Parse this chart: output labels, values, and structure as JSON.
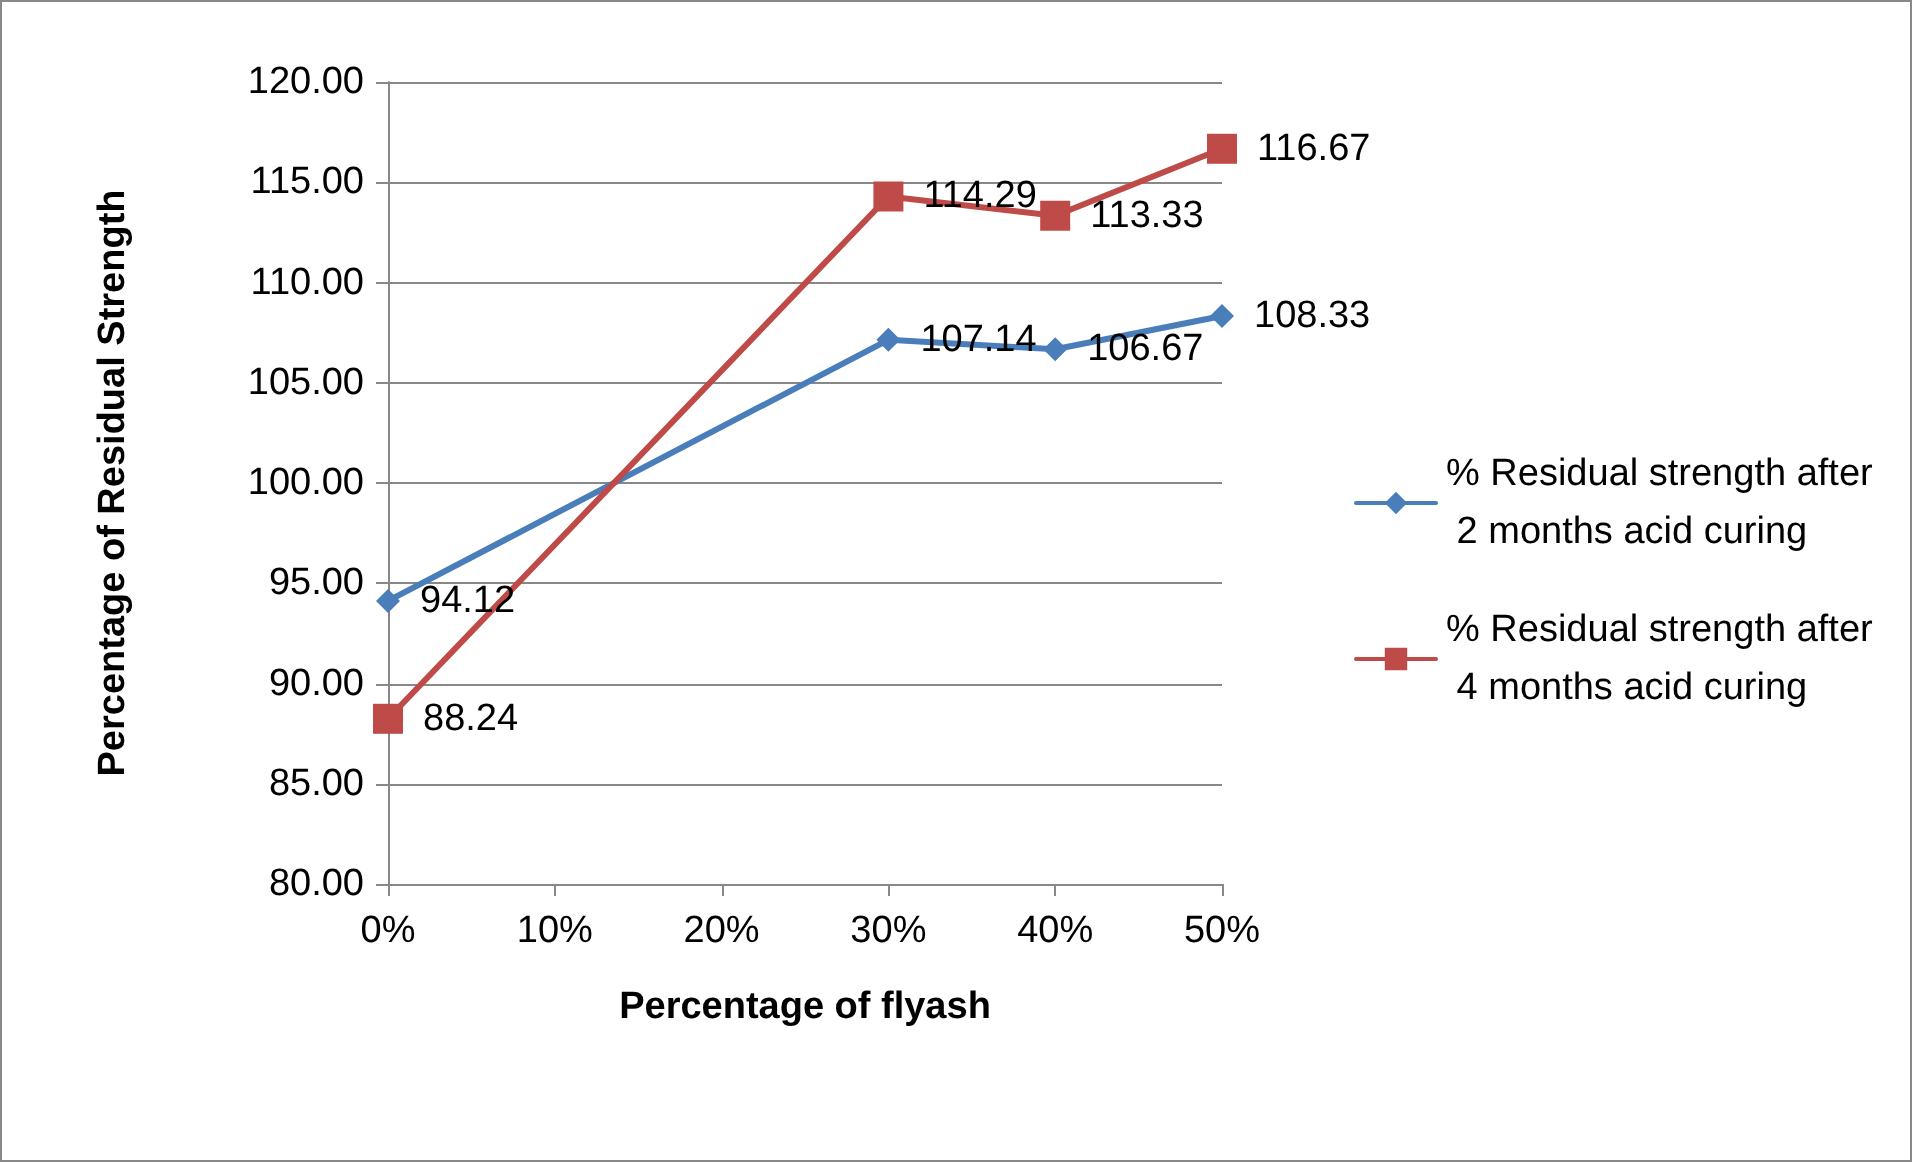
{
  "chart_data": {
    "type": "line",
    "xlabel": "Percentage of flyash",
    "ylabel": "Percentage of Residual Strength",
    "x": [
      0,
      30,
      40,
      50
    ],
    "series": [
      {
        "name": "% Residual strength after 2 months acid curing",
        "color": "#4a7ebb",
        "marker": "diamond",
        "values": [
          94.12,
          107.14,
          106.67,
          108.33
        ]
      },
      {
        "name": "% Residual strength after 4 months acid curing",
        "color": "#be4b48",
        "marker": "square",
        "values": [
          88.24,
          114.29,
          113.33,
          116.67
        ]
      }
    ],
    "xlim": [
      0,
      50
    ],
    "xticks": [
      {
        "value": 0,
        "label": "0%"
      },
      {
        "value": 10,
        "label": "10%"
      },
      {
        "value": 20,
        "label": "20%"
      },
      {
        "value": 30,
        "label": "30%"
      },
      {
        "value": 40,
        "label": "40%"
      },
      {
        "value": 50,
        "label": "50%"
      }
    ],
    "ylim": [
      80,
      120
    ],
    "yticks": [
      {
        "value": 80,
        "label": "80.00"
      },
      {
        "value": 85,
        "label": "85.00"
      },
      {
        "value": 90,
        "label": "90.00"
      },
      {
        "value": 95,
        "label": "95.00"
      },
      {
        "value": 100,
        "label": "100.00"
      },
      {
        "value": 105,
        "label": "105.00"
      },
      {
        "value": 110,
        "label": "110.00"
      },
      {
        "value": 115,
        "label": "115.00"
      },
      {
        "value": 120,
        "label": "120.00"
      }
    ],
    "grid": "y",
    "legend": "right",
    "data_labels": true,
    "line_style": "solid"
  }
}
